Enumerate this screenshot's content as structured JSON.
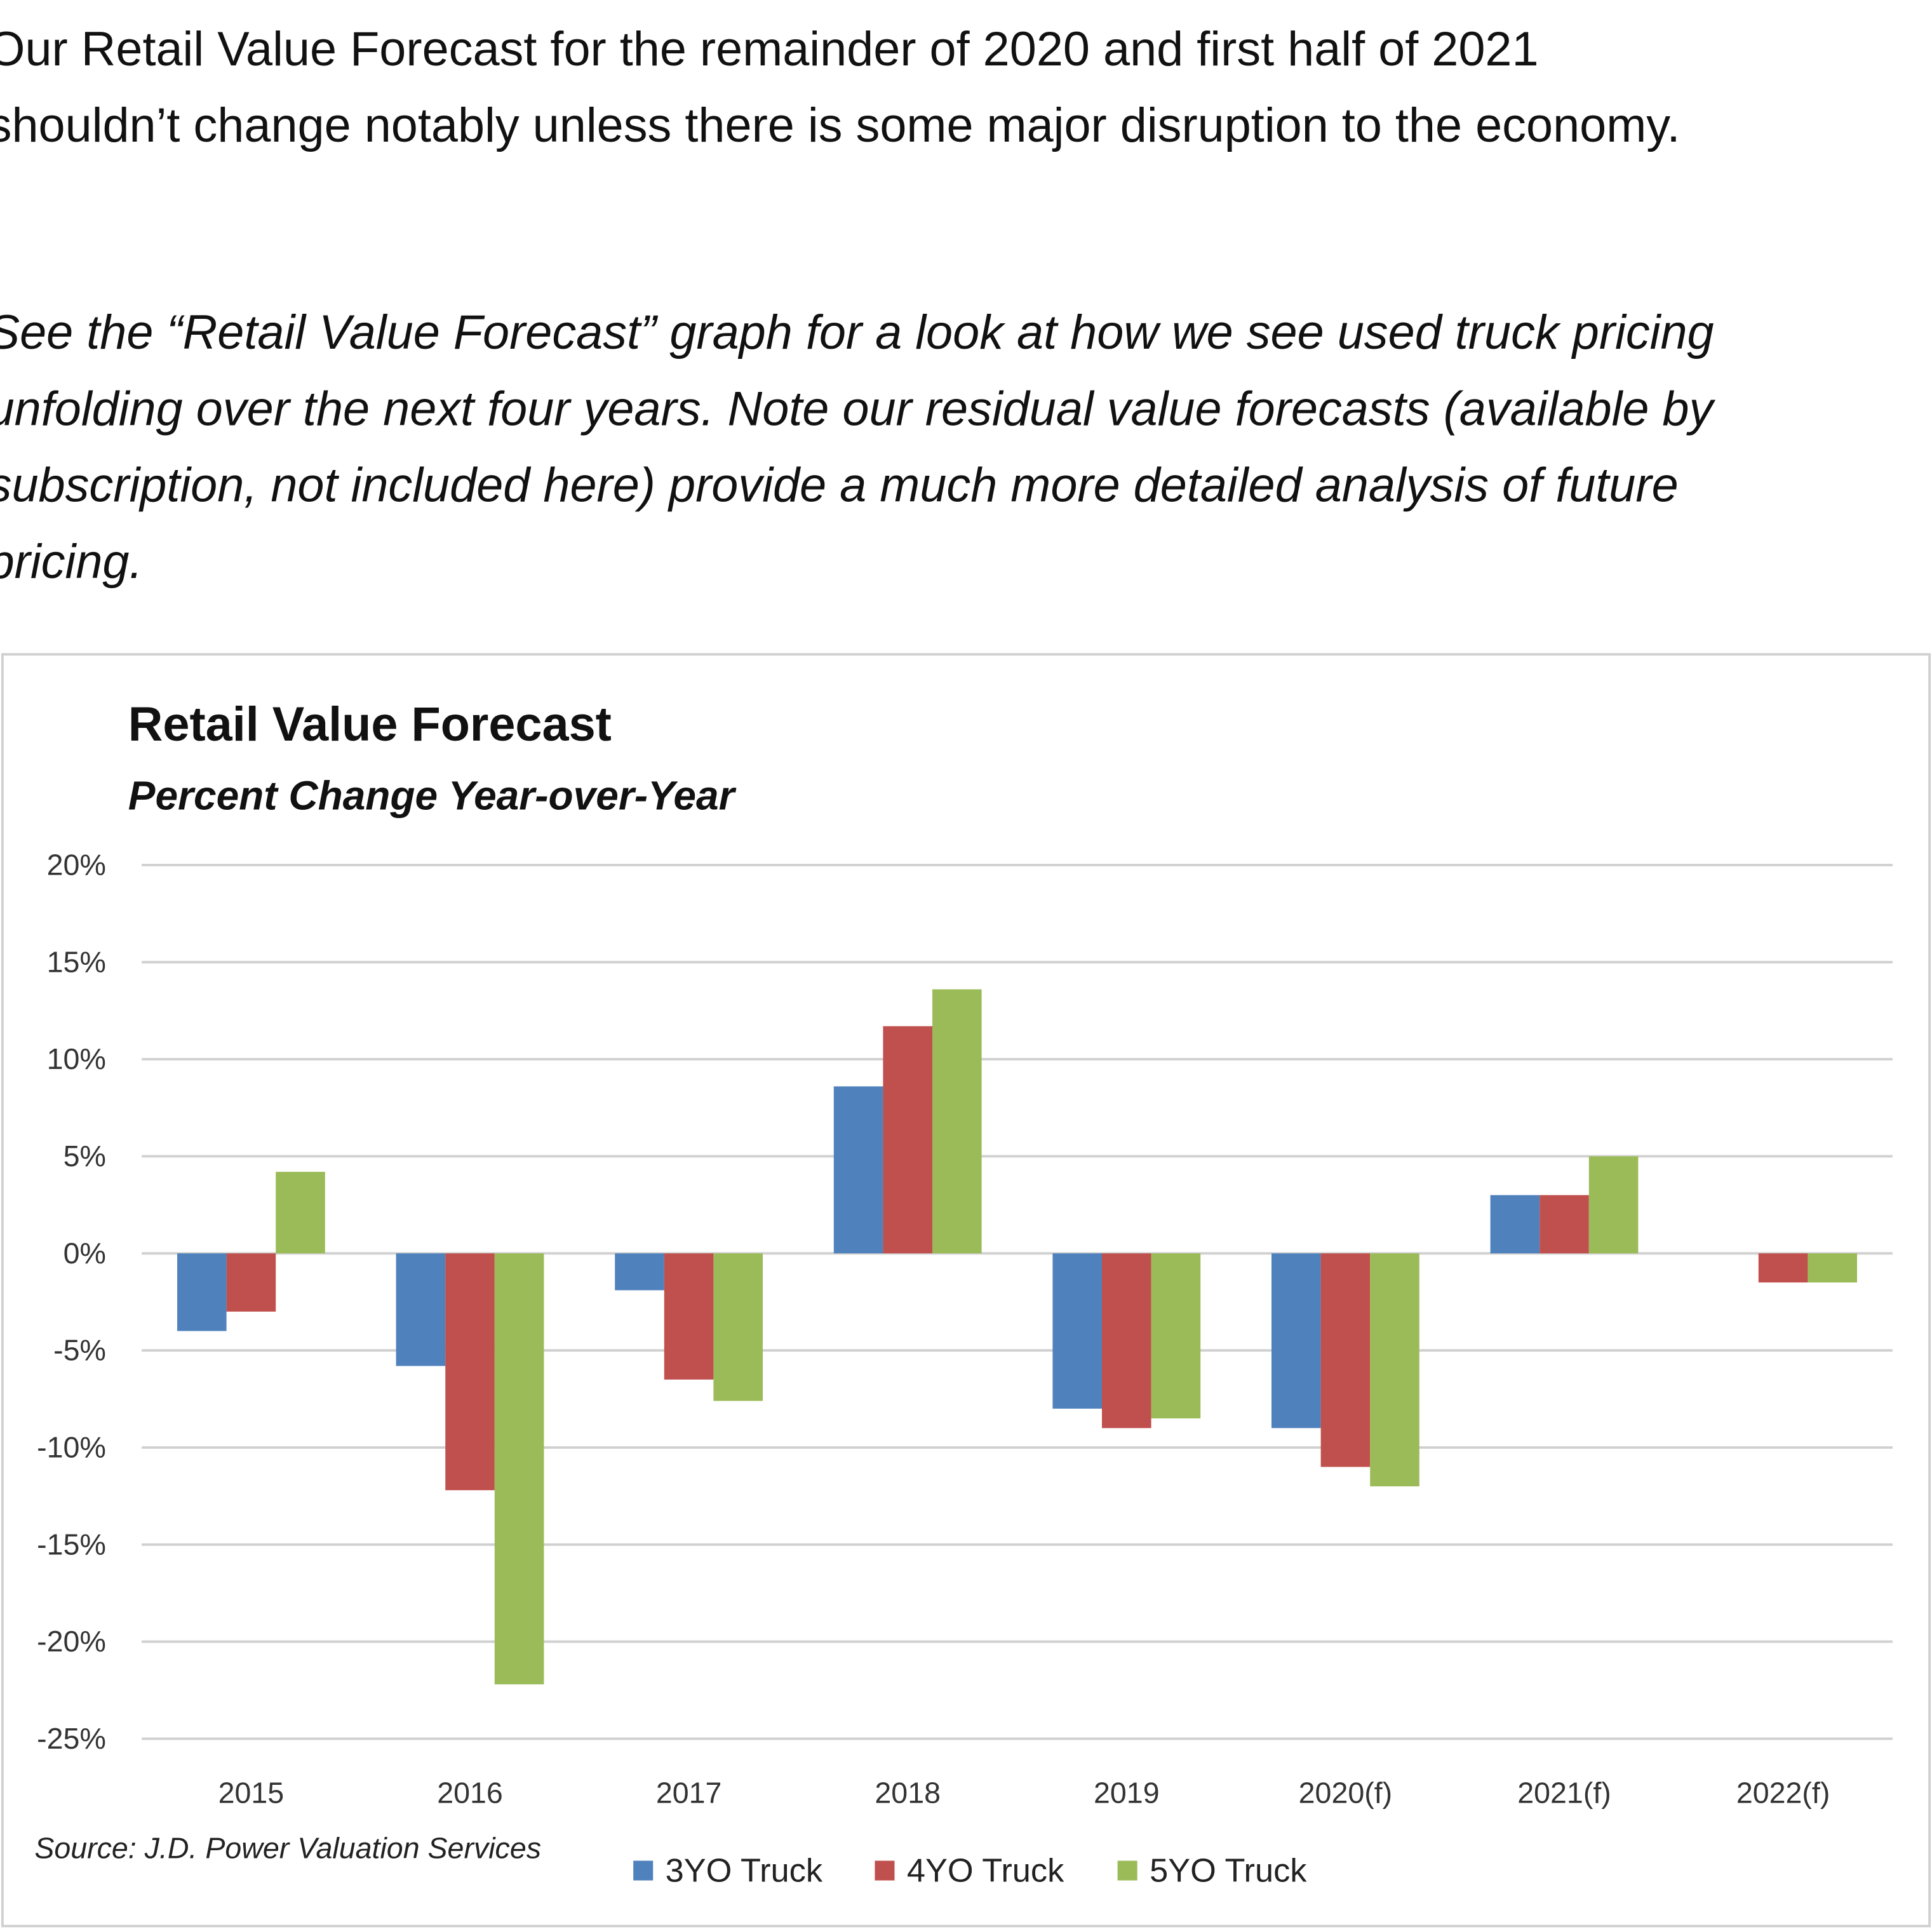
{
  "paragraphs": [
    [
      "Our Retail Value Forecast for the remainder of 2020 and first half of 2021",
      "shouldn’t change notably unless there is some major disruption to the economy."
    ],
    [
      "See the “Retail Value Forecast” graph for a look at how we see used truck pricing",
      "unfolding over the next four years. Note our residual value forecasts (available by",
      "subscription, not included here) provide a much more detailed analysis of future",
      "pricing."
    ]
  ],
  "chart_data": {
    "type": "bar",
    "title": "Retail Value Forecast",
    "subtitle": "Percent Change Year-over-Year",
    "source": "Source: J.D. Power Valuation Services",
    "categories": [
      "2015",
      "2016",
      "2017",
      "2018",
      "2019",
      "2020(f)",
      "2021(f)",
      "2022(f)"
    ],
    "series": [
      {
        "name": "3YO Truck",
        "color": "#4f81bd",
        "values": [
          -4,
          -5.8,
          -1.9,
          8.6,
          -8,
          -9,
          3,
          null
        ]
      },
      {
        "name": "4YO Truck",
        "color": "#c0504d",
        "values": [
          -3,
          -12.2,
          -6.5,
          11.7,
          -9,
          -11,
          3,
          -1.5
        ]
      },
      {
        "name": "5YO Truck",
        "color": "#9bbb59",
        "values": [
          4.2,
          -22.2,
          -7.6,
          13.6,
          -8.5,
          -12,
          5,
          -1.5
        ]
      }
    ],
    "ylim": [
      -25,
      20
    ],
    "yticks": [
      {
        "value": -25,
        "label": "-25%"
      },
      {
        "value": -20,
        "label": "-20%"
      },
      {
        "value": -15,
        "label": "-15%"
      },
      {
        "value": -10,
        "label": "-10%"
      },
      {
        "value": -5,
        "label": "-5%"
      },
      {
        "value": 0,
        "label": "0%"
      },
      {
        "value": 5,
        "label": "5%"
      },
      {
        "value": 10,
        "label": "10%"
      },
      {
        "value": 15,
        "label": "15%"
      },
      {
        "value": 20,
        "label": "20%"
      }
    ],
    "grid": true,
    "legend": "bottom"
  }
}
